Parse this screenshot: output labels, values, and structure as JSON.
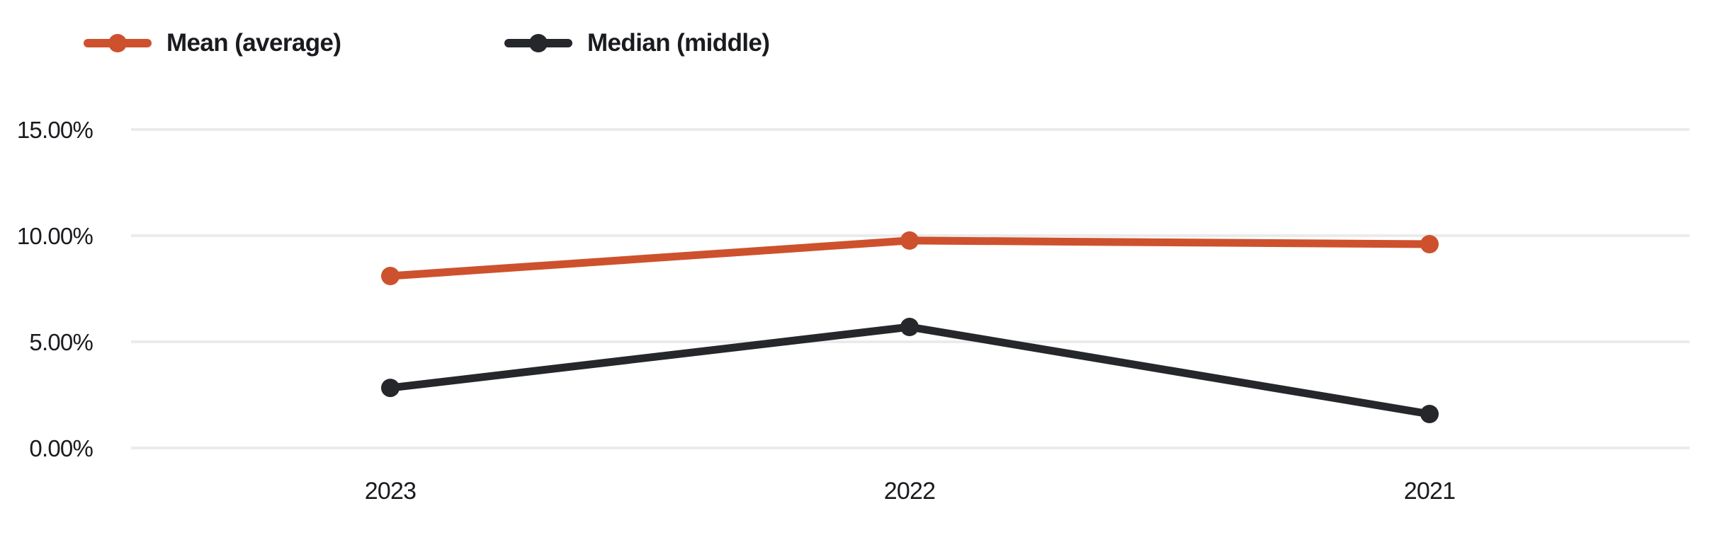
{
  "chart_data": {
    "type": "line",
    "categories": [
      "2023",
      "2022",
      "2021"
    ],
    "series": [
      {
        "name": "Mean (average)",
        "color": "#CE512E",
        "values": [
          8.1,
          9.77,
          9.6
        ]
      },
      {
        "name": "Median (middle)",
        "color": "#26272B",
        "values": [
          2.83,
          5.7,
          1.6
        ]
      }
    ],
    "title": "",
    "xlabel": "",
    "ylabel": "",
    "ylim": [
      0,
      15
    ],
    "yticks": [
      {
        "value": 15,
        "label": "15.00%"
      },
      {
        "value": 10,
        "label": "10.00%"
      },
      {
        "value": 5,
        "label": "5.00%"
      },
      {
        "value": 0,
        "label": "0.00%"
      }
    ],
    "grid": "horizontal",
    "legend_position": "top-left"
  },
  "colors": {
    "background": "#FFFFFF",
    "gridline": "#EBEBEB",
    "text": "#1A1B1F",
    "mean_series": "#CE512E",
    "median_series": "#26272B"
  }
}
